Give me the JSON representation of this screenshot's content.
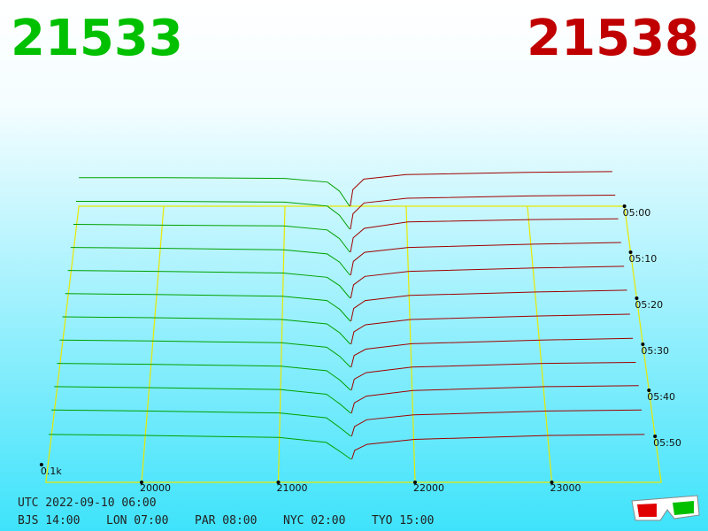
{
  "chart_data": {
    "type": "depth3d",
    "bid_price": "21533",
    "ask_price": "21538",
    "depth_label": "0.1k",
    "xlim": [
      19300,
      23800
    ],
    "xticks": [
      20000,
      21000,
      22000,
      23000
    ],
    "tlim": [
      0,
      60
    ],
    "tticks": [
      {
        "value": 0,
        "label": "05:00"
      },
      {
        "value": 10,
        "label": "05:10"
      },
      {
        "value": 20,
        "label": "05:20"
      },
      {
        "value": 30,
        "label": "05:30"
      },
      {
        "value": 40,
        "label": "05:40"
      },
      {
        "value": 50,
        "label": "05:50"
      }
    ],
    "bid_color": "#00a000",
    "ask_color": "#a00000",
    "floor_color": "#e8e800",
    "bid_prices": [
      19300,
      20000,
      21000,
      21350,
      21450,
      21533
    ],
    "ask_prices": [
      21538,
      21560,
      21650,
      22000,
      23000,
      23700
    ],
    "snapshots": [
      {
        "minutes": 0,
        "bids": [
          38,
          38,
          37,
          32,
          20,
          0
        ],
        "asks": [
          0,
          22,
          36,
          42,
          45,
          46
        ]
      },
      {
        "minutes": 5,
        "bids": [
          36,
          36,
          35,
          30,
          18,
          0
        ],
        "asks": [
          0,
          20,
          34,
          40,
          43,
          44
        ]
      },
      {
        "minutes": 10,
        "bids": [
          35,
          34,
          33,
          28,
          17,
          0
        ],
        "asks": [
          0,
          18,
          30,
          38,
          41,
          42
        ]
      },
      {
        "minutes": 15,
        "bids": [
          34,
          33,
          31,
          26,
          16,
          0
        ],
        "asks": [
          0,
          17,
          28,
          34,
          38,
          40
        ]
      },
      {
        "minutes": 20,
        "bids": [
          33,
          32,
          30,
          25,
          15,
          0
        ],
        "asks": [
          0,
          16,
          26,
          32,
          36,
          38
        ]
      },
      {
        "minutes": 25,
        "bids": [
          32,
          31,
          29,
          24,
          14,
          0
        ],
        "asks": [
          0,
          15,
          24,
          30,
          34,
          36
        ]
      },
      {
        "minutes": 30,
        "bids": [
          31,
          30,
          28,
          23,
          13,
          0
        ],
        "asks": [
          0,
          14,
          22,
          28,
          32,
          34
        ]
      },
      {
        "minutes": 35,
        "bids": [
          30,
          29,
          27,
          22,
          12,
          0
        ],
        "asks": [
          0,
          13,
          20,
          26,
          30,
          32
        ]
      },
      {
        "minutes": 40,
        "bids": [
          29,
          28,
          26,
          21,
          11,
          0
        ],
        "asks": [
          0,
          12,
          19,
          25,
          29,
          30
        ]
      },
      {
        "minutes": 45,
        "bids": [
          28,
          27,
          25,
          20,
          10,
          0
        ],
        "asks": [
          0,
          11,
          18,
          24,
          28,
          29
        ]
      },
      {
        "minutes": 50,
        "bids": [
          27,
          26,
          24,
          19,
          9,
          0
        ],
        "asks": [
          0,
          10,
          17,
          22,
          26,
          27
        ]
      },
      {
        "minutes": 55,
        "bids": [
          25,
          24,
          22,
          17,
          8,
          0
        ],
        "asks": [
          0,
          9,
          15,
          20,
          24,
          25
        ]
      }
    ],
    "footer": {
      "utc": "UTC 2022-09-10 06:00",
      "zones": [
        "BJS 14:00",
        "LON 07:00",
        "PAR 08:00",
        "NYC 02:00",
        "TYO 15:00"
      ]
    }
  }
}
